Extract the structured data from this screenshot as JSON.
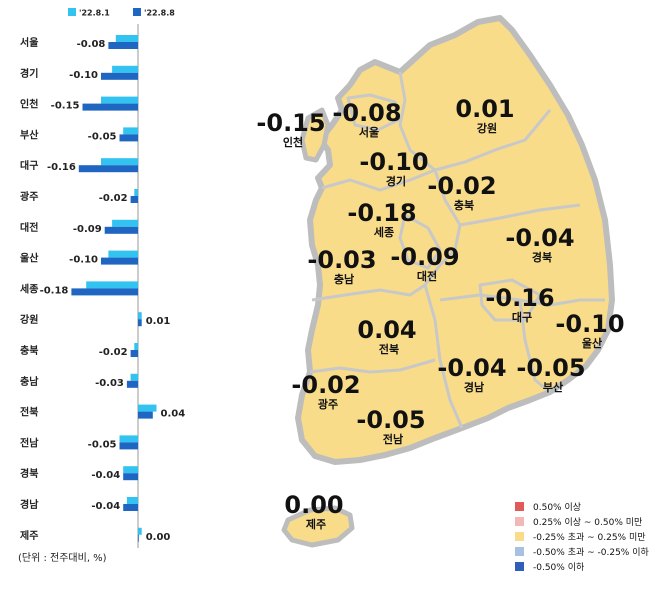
{
  "chart_data": {
    "type": "bar",
    "orientation": "horizontal",
    "categories": [
      "서울",
      "경기",
      "인천",
      "부산",
      "대구",
      "광주",
      "대전",
      "울산",
      "세종",
      "강원",
      "충북",
      "충남",
      "전북",
      "전남",
      "경북",
      "경남",
      "제주"
    ],
    "series": [
      {
        "name": "'22.8.1",
        "color": "#33c3f0",
        "values": [
          -0.06,
          -0.07,
          -0.1,
          -0.04,
          -0.1,
          -0.01,
          -0.07,
          -0.08,
          -0.14,
          0.01,
          -0.01,
          -0.02,
          0.05,
          -0.05,
          -0.04,
          -0.03,
          0.01
        ]
      },
      {
        "name": "'22.8.8",
        "color": "#1f66c2",
        "values": [
          -0.08,
          -0.1,
          -0.15,
          -0.05,
          -0.16,
          -0.02,
          -0.09,
          -0.1,
          -0.18,
          0.01,
          -0.02,
          -0.03,
          0.04,
          -0.05,
          -0.04,
          -0.04,
          0.0
        ]
      }
    ],
    "data_labels": [
      "-0.08",
      "-0.10",
      "-0.15",
      "-0.05",
      "-0.16",
      "-0.02",
      "-0.09",
      "-0.10",
      "-0.18",
      "0.01",
      "-0.02",
      "-0.03",
      "0.04",
      "-0.05",
      "-0.04",
      "-0.04",
      "0.00"
    ],
    "xlim": [
      -0.2,
      0.05
    ],
    "unit_note": "(단위 : 전주대비, %)"
  },
  "map": {
    "regions": [
      {
        "name": "인천",
        "value": "-0.15"
      },
      {
        "name": "서울",
        "value": "-0.08"
      },
      {
        "name": "강원",
        "value": "0.01"
      },
      {
        "name": "경기",
        "value": "-0.10"
      },
      {
        "name": "충북",
        "value": "-0.02"
      },
      {
        "name": "세종",
        "value": "-0.18"
      },
      {
        "name": "경북",
        "value": "-0.04"
      },
      {
        "name": "충남",
        "value": "-0.03"
      },
      {
        "name": "대전",
        "value": "-0.09"
      },
      {
        "name": "대구",
        "value": "-0.16"
      },
      {
        "name": "울산",
        "value": "-0.10"
      },
      {
        "name": "전북",
        "value": "0.04"
      },
      {
        "name": "경남",
        "value": "-0.04"
      },
      {
        "name": "부산",
        "value": "-0.05"
      },
      {
        "name": "광주",
        "value": "-0.02"
      },
      {
        "name": "전남",
        "value": "-0.05"
      },
      {
        "name": "제주",
        "value": "0.00"
      }
    ],
    "fill_color": "#f8dc8a",
    "border_color": "#bdbdbd",
    "legend": [
      {
        "label": "0.50% 이상",
        "color": "#e05a5a"
      },
      {
        "label": "0.25% 이상 ~ 0.50% 미만",
        "color": "#f2b7b7"
      },
      {
        "label": "-0.25% 초과 ~ 0.25% 미만",
        "color": "#f8dc8a"
      },
      {
        "label": "-0.50% 초과 ~ -0.25% 이하",
        "color": "#a9c1e0"
      },
      {
        "label": "-0.50% 이하",
        "color": "#2f5fb8"
      }
    ]
  }
}
